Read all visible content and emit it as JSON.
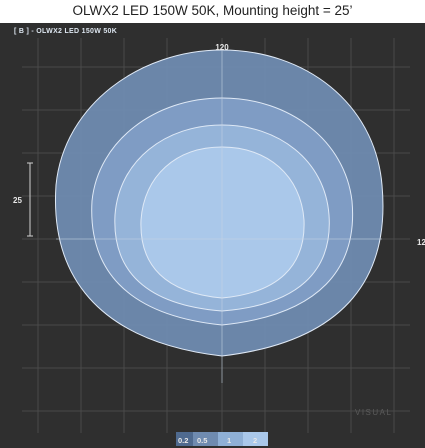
{
  "title": "OLWX2 LED 150W 50K, Mounting height = 25’",
  "header_label": "[ B ] - OLWX2 LED 150W 50K",
  "dimension_labels": {
    "top": "120",
    "left": "25",
    "right": "12"
  },
  "watermark": "VISUAL",
  "legend": [
    {
      "label": "0.2",
      "color": "#4f6a8f"
    },
    {
      "label": "0.5",
      "color": "#6f8bb0"
    },
    {
      "label": "1",
      "color": "#8fb0d6"
    },
    {
      "label": "2",
      "color": "#aac8ea"
    }
  ],
  "colors": {
    "background": "#2f2f2f",
    "grid": "#4a4a4a",
    "contour_fill": "#7f9cc4",
    "contour_stroke": "#dfe9f6"
  }
}
